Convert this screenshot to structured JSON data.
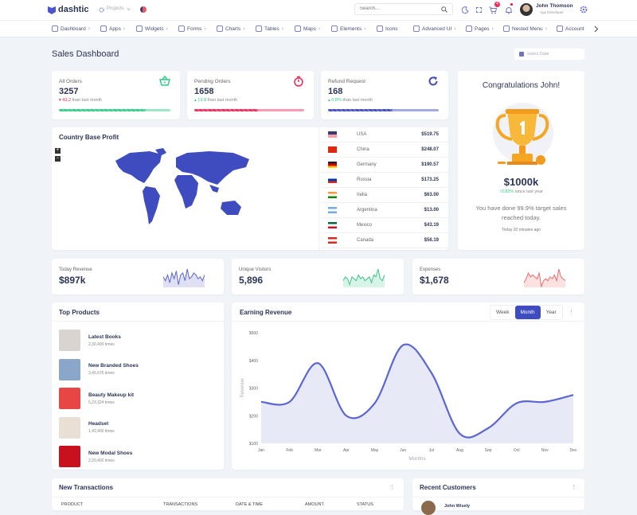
{
  "header": {
    "brand": "dashtic",
    "projects_label": "Projects",
    "search_placeholder": "Search...",
    "cart_badge": "4",
    "user_name": "John Thomson",
    "user_role": "App Developer"
  },
  "nav": [
    {
      "label": "Dashboard",
      "chev": true
    },
    {
      "label": "Apps",
      "chev": true
    },
    {
      "label": "Widgets",
      "chev": true
    },
    {
      "label": "Forms",
      "chev": true
    },
    {
      "label": "Charts",
      "chev": true
    },
    {
      "label": "Tables",
      "chev": true
    },
    {
      "label": "Maps",
      "chev": true
    },
    {
      "label": "Elements",
      "chev": true
    },
    {
      "label": "Icons",
      "chev": false
    },
    {
      "label": "Advanced UI",
      "chev": true
    },
    {
      "label": "Pages",
      "chev": true
    },
    {
      "label": "Nested Menu",
      "chev": true
    },
    {
      "label": "Account",
      "chev": false
    }
  ],
  "page": {
    "title": "Sales Dashboard",
    "date_placeholder": "select Date"
  },
  "stats": [
    {
      "label": "All Orders",
      "value": "3257",
      "change": "43.2",
      "suffix": "than last month",
      "direction": "down",
      "color": "#2ecc88",
      "progress": 78
    },
    {
      "label": "Pending Orders",
      "value": "1658",
      "change": "19.8",
      "suffix": "than last month",
      "direction": "up",
      "color": "#f0285a",
      "progress": 58
    },
    {
      "label": "Refund Request",
      "value": "168",
      "change": "0.8%",
      "suffix": "than last month",
      "direction": "up",
      "color": "#3f4cc0",
      "progress": 58
    }
  ],
  "congrats": {
    "title": "Congratulations John!",
    "amount": "$1000k",
    "change": "0.82%",
    "change_suffix": "since last year",
    "message": "You have done 99.9% target sales reached today.",
    "time": "Today 20 minutes ago"
  },
  "country": {
    "title": "Country Base Profit",
    "zoom_in": "+",
    "zoom_out": "−",
    "rows": [
      {
        "country": "USA",
        "amount": "$519.75",
        "flag": [
          "#3c3b6e",
          "#f3a0a8"
        ]
      },
      {
        "country": "China",
        "amount": "$248.07",
        "flag": [
          "#de2910",
          "#de2910"
        ]
      },
      {
        "country": "Germany",
        "amount": "$190.57",
        "flag": [
          "#222",
          "#dd0000",
          "#ffce00"
        ]
      },
      {
        "country": "Russia",
        "amount": "$173.25",
        "flag": [
          "#fff",
          "#0039a6",
          "#d52b1e"
        ]
      },
      {
        "country": "India",
        "amount": "$63.00",
        "flag": [
          "#ff9933",
          "#fff",
          "#138808"
        ]
      },
      {
        "country": "Argentina",
        "amount": "$13.00",
        "flag": [
          "#74acdf",
          "#fff",
          "#74acdf"
        ]
      },
      {
        "country": "Mexico",
        "amount": "$43.19",
        "flag": [
          "#006847",
          "#fff",
          "#ce1126"
        ]
      },
      {
        "country": "Canada",
        "amount": "$56.19",
        "flag": [
          "#d52b1e",
          "#fff",
          "#d52b1e"
        ]
      }
    ]
  },
  "mini": [
    {
      "label": "Today Revenue",
      "value": "$897k",
      "color": "#5d65c8",
      "spark": [
        5,
        3,
        6,
        2,
        7,
        4,
        8,
        1,
        6,
        7,
        3,
        9,
        4,
        5,
        7,
        6,
        4,
        5,
        3,
        6
      ]
    },
    {
      "label": "Unique Visitors",
      "value": "5,896",
      "color": "#3ec48a",
      "spark": [
        3,
        5,
        4,
        1,
        5,
        4,
        3,
        6,
        4,
        5,
        3,
        4,
        5,
        2,
        6,
        5,
        9,
        4,
        3,
        6
      ]
    },
    {
      "label": "Expenses",
      "value": "$1,678",
      "color": "#ef6b6b",
      "spark": [
        2,
        4,
        7,
        5,
        6,
        5,
        4,
        7,
        0,
        3,
        4,
        3,
        5,
        4,
        6,
        3,
        9,
        5,
        4,
        3
      ]
    }
  ],
  "products": {
    "title": "Top Products",
    "items": [
      {
        "name": "Latest Books",
        "times": "2,30,400 times",
        "color": "#d9d4cf"
      },
      {
        "name": "New Branded Shoes",
        "times": "3,45,675 times",
        "color": "#8aa6c8"
      },
      {
        "name": "Beauty Makeup kit",
        "times": "5,23,324 times",
        "color": "#e84545"
      },
      {
        "name": "Headset",
        "times": "1,42,400 times",
        "color": "#e9dfd4"
      },
      {
        "name": "New Modal Shoes",
        "times": "2,20,400 times",
        "color": "#c8101f"
      }
    ]
  },
  "earning": {
    "title": "Earning Revenue",
    "tabs": [
      "Week",
      "Month",
      "Year"
    ],
    "active_tab": "Month"
  },
  "chart_data": {
    "type": "area",
    "title": "",
    "xlabel": "Months",
    "ylabel": "Revenue",
    "categories": [
      "Jan",
      "Feb",
      "Mar",
      "Apr",
      "May",
      "Jun",
      "Jul",
      "Aug",
      "Sep",
      "Oct",
      "Nov",
      "Dec"
    ],
    "values": [
      250,
      250,
      390,
      200,
      245,
      455,
      355,
      135,
      155,
      245,
      250,
      275
    ],
    "ylim": [
      100,
      500
    ],
    "yticks": [
      "$100",
      "$200",
      "$300",
      "$400",
      "$500"
    ],
    "color": "#5c66d0",
    "grid": false,
    "legend": "none"
  },
  "transactions": {
    "title": "New Transactions",
    "columns": [
      "PRODUCT",
      "TRANSACTIONS",
      "DATE & TIME",
      "AMOUNT",
      "STATUS"
    ]
  },
  "customers": {
    "title": "Recent Customers",
    "first": "John Wisely"
  }
}
